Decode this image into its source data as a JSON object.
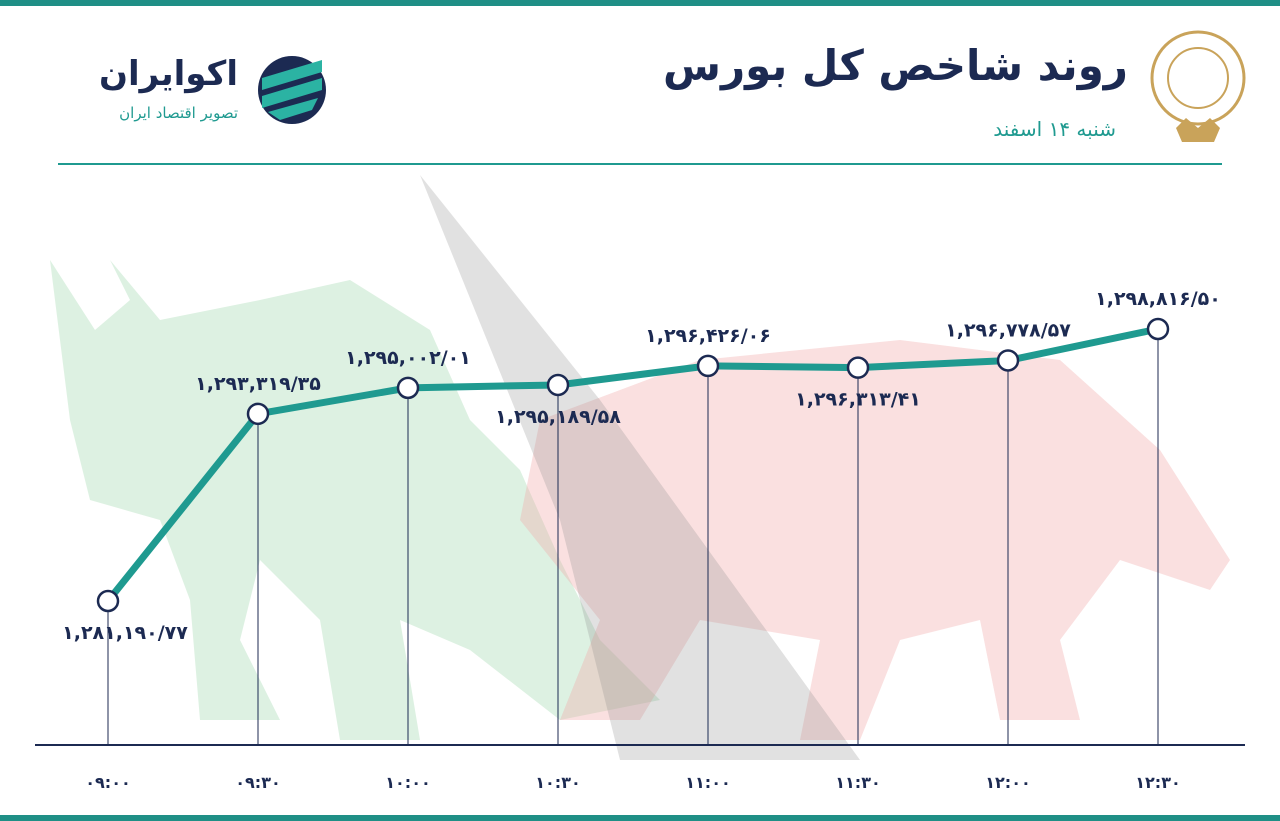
{
  "header": {
    "title": "روند شاخص کل بورس",
    "subtitle": "شنبه ۱۴ اسفند",
    "brand": "اکوایران",
    "tagline": "تصویر اقتصاد ایران"
  },
  "chart_data": {
    "type": "line",
    "color": "#1f9a90",
    "categories": [
      "۰۹:۰۰",
      "۰۹:۳۰",
      "۱۰:۰۰",
      "۱۰:۳۰",
      "۱۱:۰۰",
      "۱۱:۳۰",
      "۱۲:۰۰",
      "۱۲:۳۰"
    ],
    "values": [
      1281190.77,
      1293319.35,
      1295002.01,
      1295189.58,
      1296426.06,
      1296313.41,
      1296778.57,
      1298816.5
    ],
    "value_labels": [
      "۱,۲۸۱,۱۹۰/۷۷",
      "۱,۲۹۳,۳۱۹/۳۵",
      "۱,۲۹۵,۰۰۲/۰۱",
      "۱,۲۹۵,۱۸۹/۵۸",
      "۱,۲۹۶,۴۲۶/۰۶",
      "۱,۲۹۶,۳۱۳/۴۱",
      "۱,۲۹۶,۷۷۸/۵۷",
      "۱,۲۹۸,۸۱۶/۵۰"
    ]
  }
}
